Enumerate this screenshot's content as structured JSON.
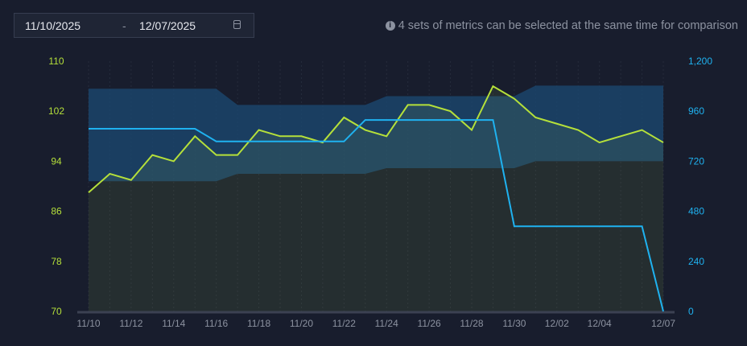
{
  "date_range": {
    "start": "11/10/2025",
    "separator": "-",
    "end": "12/07/2025",
    "icon": "calendar-icon"
  },
  "hint": {
    "icon": "info-icon",
    "text": "4 sets of metrics can be selected at the same time for comparison"
  },
  "colors": {
    "left_series": "#b5e03a",
    "right_series": "#1fb2f0",
    "band": "#1b4a73",
    "background": "#181d2d"
  },
  "chart_data": {
    "type": "line",
    "x": [
      "11/10",
      "11/11",
      "11/12",
      "11/13",
      "11/14",
      "11/15",
      "11/16",
      "11/17",
      "11/18",
      "11/19",
      "11/20",
      "11/21",
      "11/22",
      "11/23",
      "11/24",
      "11/25",
      "11/26",
      "11/27",
      "11/28",
      "11/29",
      "11/30",
      "12/01",
      "12/02",
      "12/03",
      "12/04",
      "12/05",
      "12/06",
      "12/07"
    ],
    "x_tick_labels": [
      "11/10",
      "11/12",
      "11/14",
      "11/16",
      "11/18",
      "11/20",
      "11/22",
      "11/24",
      "11/26",
      "11/28",
      "11/30",
      "12/02",
      "12/04",
      "12/07"
    ],
    "y_left": {
      "range": [
        70,
        110
      ],
      "ticks": [
        "70",
        "78",
        "86",
        "94",
        "102",
        "110"
      ]
    },
    "y_right": {
      "range": [
        0,
        1200
      ],
      "ticks": [
        "0",
        "240",
        "480",
        "720",
        "960",
        "1,200"
      ]
    },
    "series": [
      {
        "axis": "left",
        "area": true,
        "values": [
          89,
          92,
          91,
          95,
          94,
          98,
          95,
          95,
          99,
          98,
          98,
          97,
          101,
          99,
          98,
          103,
          103,
          102,
          99,
          106,
          104,
          101,
          100,
          99,
          97,
          98,
          99,
          97
        ]
      },
      {
        "axis": "right",
        "values": [
          876,
          876,
          876,
          876,
          876,
          876,
          815,
          815,
          815,
          815,
          815,
          815,
          815,
          918,
          918,
          918,
          918,
          918,
          918,
          918,
          408,
          408,
          408,
          408,
          408,
          408,
          408,
          0
        ]
      }
    ],
    "band": {
      "axis": "left",
      "upper": [
        105.6,
        105.6,
        105.6,
        105.6,
        105.6,
        105.6,
        105.6,
        103,
        103,
        103,
        103,
        103,
        103,
        103,
        104.4,
        104.4,
        104.4,
        104.4,
        104.4,
        104.4,
        104.4,
        106.1,
        106.1,
        106.1,
        106.1,
        106.1,
        106.1,
        106.1
      ],
      "lower": [
        90.8,
        90.8,
        90.8,
        90.8,
        90.8,
        90.8,
        90.8,
        92,
        92,
        92,
        92,
        92,
        92,
        92,
        92.9,
        92.9,
        92.9,
        92.9,
        92.9,
        92.9,
        92.9,
        94,
        94,
        94,
        94,
        94,
        94,
        94
      ]
    },
    "grid": "vertical-dotted",
    "legend": "none"
  }
}
